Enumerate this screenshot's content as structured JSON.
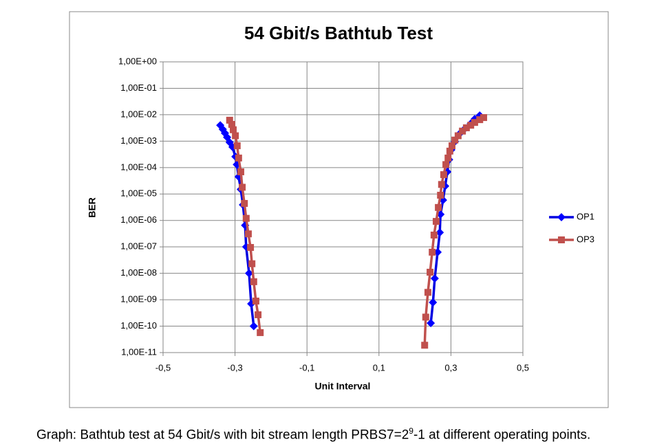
{
  "chart_data": {
    "type": "line",
    "title": "54 Gbit/s Bathtub Test",
    "xlabel": "Unit Interval",
    "ylabel": "BER",
    "log_y": true,
    "grid": true,
    "legend": "right",
    "xlim": [
      -0.5,
      0.5
    ],
    "xticks": [
      {
        "value": -0.5,
        "label": "-0,5"
      },
      {
        "value": -0.3,
        "label": "-0,3"
      },
      {
        "value": -0.1,
        "label": "-0,1"
      },
      {
        "value": 0.1,
        "label": "0,1"
      },
      {
        "value": 0.3,
        "label": "0,3"
      },
      {
        "value": 0.5,
        "label": "0,5"
      }
    ],
    "ylim": [
      1e-11,
      1
    ],
    "yticks": [
      {
        "value": 1,
        "label": "1,00E+00"
      },
      {
        "value": 0.1,
        "label": "1,00E-01"
      },
      {
        "value": 0.01,
        "label": "1,00E-02"
      },
      {
        "value": 0.001,
        "label": "1,00E-03"
      },
      {
        "value": 0.0001,
        "label": "1,00E-04"
      },
      {
        "value": 1e-05,
        "label": "1,00E-05"
      },
      {
        "value": 1e-06,
        "label": "1,00E-06"
      },
      {
        "value": 1e-07,
        "label": "1,00E-07"
      },
      {
        "value": 1e-08,
        "label": "1,00E-08"
      },
      {
        "value": 1e-09,
        "label": "1,00E-09"
      },
      {
        "value": 1e-10,
        "label": "1,00E-10"
      },
      {
        "value": 1e-11,
        "label": "1,00E-11"
      }
    ],
    "series": [
      {
        "name": "OP1",
        "color": "#0000e0",
        "marker": "diamond",
        "x": [
          -0.341,
          -0.334,
          -0.328,
          -0.322,
          -0.315,
          -0.307,
          -0.299,
          -0.295,
          -0.29,
          -0.284,
          -0.278,
          -0.272,
          -0.269,
          -0.261,
          -0.255,
          -0.248,
          null,
          0.244,
          0.25,
          0.255,
          0.263,
          0.269,
          0.271,
          0.278,
          0.284,
          0.29,
          0.295,
          0.301,
          0.311,
          0.324,
          0.339,
          0.355,
          0.366,
          0.38
        ],
        "values": [
          0.004,
          0.0028,
          0.002,
          0.0014,
          0.00091,
          0.0006,
          0.00026,
          0.00013,
          4.5e-05,
          1.5e-05,
          3.9e-06,
          6.5e-07,
          1e-07,
          1e-08,
          7e-10,
          1e-10,
          null,
          1.3e-10,
          7.9e-10,
          6.4e-09,
          6.3e-08,
          3.5e-07,
          1.7e-06,
          5.9e-06,
          2e-05,
          6.9e-05,
          0.0002,
          0.00047,
          0.00096,
          0.0019,
          0.003,
          0.0046,
          0.0069,
          0.0094
        ]
      },
      {
        "name": "OP3",
        "color": "#c0504d",
        "marker": "square",
        "x": [
          -0.315,
          -0.309,
          -0.305,
          -0.299,
          -0.294,
          -0.29,
          -0.284,
          -0.28,
          -0.274,
          -0.269,
          -0.263,
          -0.257,
          -0.253,
          -0.248,
          -0.242,
          -0.236,
          -0.23,
          null,
          0.227,
          0.23,
          0.236,
          0.242,
          0.248,
          0.253,
          0.259,
          0.265,
          0.271,
          0.274,
          0.28,
          0.286,
          0.292,
          0.297,
          0.303,
          0.311,
          0.32,
          0.332,
          0.343,
          0.355,
          0.366,
          0.38,
          0.391
        ],
        "values": [
          0.0062,
          0.0043,
          0.0027,
          0.0016,
          0.00067,
          0.00023,
          6.9e-05,
          1.8e-05,
          4.4e-06,
          1.2e-06,
          3.1e-07,
          9.5e-08,
          2.3e-08,
          4.8e-09,
          8.9e-10,
          2.7e-10,
          5.7e-11,
          null,
          1.9e-11,
          2.2e-10,
          1.9e-09,
          1.1e-08,
          6.3e-08,
          2.8e-07,
          9.2e-07,
          3.1e-06,
          9e-06,
          2.3e-05,
          5.4e-05,
          0.00013,
          0.00023,
          0.00042,
          0.00067,
          0.0011,
          0.0016,
          0.0024,
          0.0032,
          0.004,
          0.0051,
          0.0065,
          0.0078
        ]
      }
    ]
  },
  "caption": {
    "before": "Graph: Bathtub test at 54 Gbit/s with bit stream length PRBS7=2",
    "superscript": "9",
    "after": "-1 at different operating points."
  }
}
